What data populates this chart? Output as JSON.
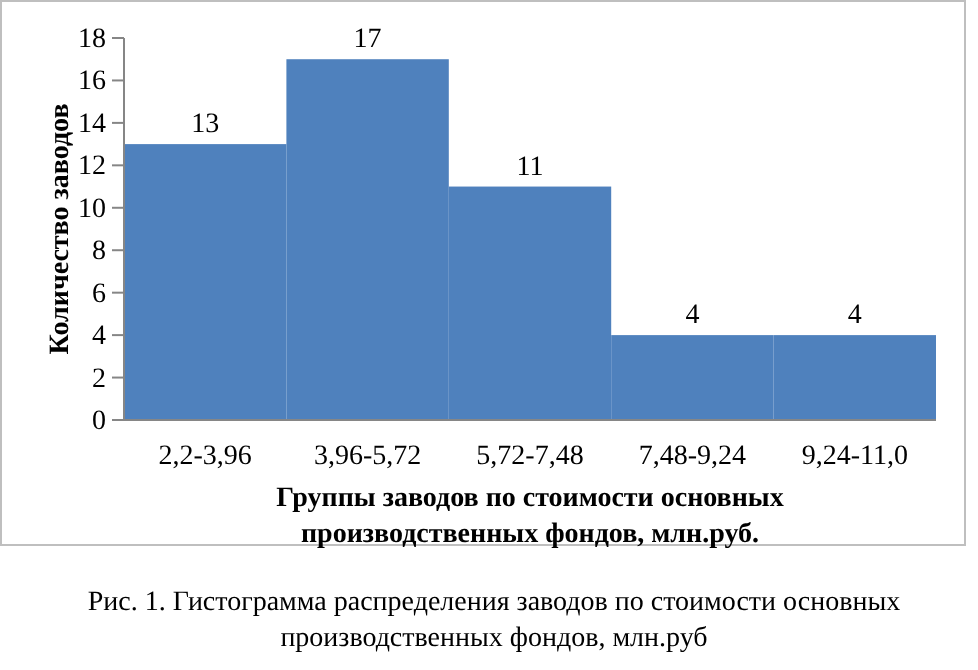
{
  "chart_data": {
    "type": "bar",
    "categories": [
      "2,2-3,96",
      "3,96-5,72",
      "5,72-7,48",
      "7,48-9,24",
      "9,24-11,0"
    ],
    "values": [
      13,
      17,
      11,
      4,
      4
    ],
    "color": "#4f81bd",
    "ylim": [
      0,
      18
    ],
    "yticks": [
      0,
      2,
      4,
      6,
      8,
      10,
      12,
      14,
      16,
      18
    ],
    "data_labels": true,
    "ylabel": "Количество заводов",
    "xlabel": "Группы заводов по стоимости основных производственных фондов, млн.руб.",
    "annotations": [
      "Рис. 1. Гистограмма распределения заводов по стоимости основных производственных фондов, млн.руб"
    ]
  }
}
